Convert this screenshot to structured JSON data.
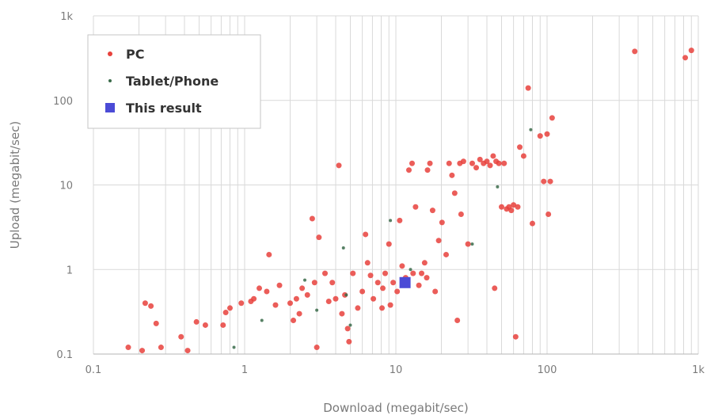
{
  "chart_data": {
    "type": "scatter",
    "scale": {
      "x": "log",
      "y": "log"
    },
    "grid": true,
    "legend_position": "top-left",
    "xlabel": "Download (megabit/sec)",
    "ylabel": "Upload (megabit/sec)",
    "xlim": [
      0.1,
      1000
    ],
    "ylim": [
      0.1,
      1000
    ],
    "x_ticks": [
      {
        "value": 0.1,
        "label": "0.1"
      },
      {
        "value": 1,
        "label": "1"
      },
      {
        "value": 10,
        "label": "10"
      },
      {
        "value": 100,
        "label": "100"
      },
      {
        "value": 1000,
        "label": "1k"
      }
    ],
    "y_ticks": [
      {
        "value": 0.1,
        "label": "0.1"
      },
      {
        "value": 1,
        "label": "1"
      },
      {
        "value": 10,
        "label": "10"
      },
      {
        "value": 100,
        "label": "100"
      },
      {
        "value": 1000,
        "label": "1k"
      }
    ],
    "series": [
      {
        "name": "PC",
        "color": "#e8413c",
        "marker": "circle",
        "points": [
          [
            0.17,
            0.12
          ],
          [
            0.21,
            0.11
          ],
          [
            0.22,
            0.4
          ],
          [
            0.24,
            0.37
          ],
          [
            0.26,
            0.23
          ],
          [
            0.28,
            0.12
          ],
          [
            0.38,
            0.16
          ],
          [
            0.42,
            0.11
          ],
          [
            0.48,
            0.24
          ],
          [
            0.55,
            0.22
          ],
          [
            0.72,
            0.22
          ],
          [
            0.75,
            0.31
          ],
          [
            0.8,
            0.35
          ],
          [
            0.95,
            0.4
          ],
          [
            1.1,
            0.42
          ],
          [
            1.25,
            0.6
          ],
          [
            1.4,
            0.55
          ],
          [
            1.45,
            1.5
          ],
          [
            1.6,
            0.38
          ],
          [
            1.7,
            0.65
          ],
          [
            2.0,
            0.4
          ],
          [
            2.1,
            0.25
          ],
          [
            2.2,
            0.45
          ],
          [
            2.3,
            0.3
          ],
          [
            2.4,
            0.6
          ],
          [
            2.8,
            4.0
          ],
          [
            2.9,
            0.7
          ],
          [
            3.0,
            0.12
          ],
          [
            3.1,
            2.4
          ],
          [
            3.4,
            0.9
          ],
          [
            3.6,
            0.42
          ],
          [
            3.8,
            0.7
          ],
          [
            4.0,
            0.45
          ],
          [
            4.2,
            17
          ],
          [
            4.4,
            0.3
          ],
          [
            4.6,
            0.5
          ],
          [
            4.8,
            0.2
          ],
          [
            4.9,
            0.14
          ],
          [
            5.2,
            0.9
          ],
          [
            5.6,
            0.35
          ],
          [
            6.0,
            0.55
          ],
          [
            6.3,
            2.6
          ],
          [
            6.8,
            0.85
          ],
          [
            7.1,
            0.45
          ],
          [
            7.6,
            0.7
          ],
          [
            8.1,
            0.35
          ],
          [
            8.5,
            0.9
          ],
          [
            9.0,
            2.0
          ],
          [
            9.2,
            0.38
          ],
          [
            9.6,
            0.7
          ],
          [
            10.2,
            0.55
          ],
          [
            10.6,
            3.8
          ],
          [
            11.0,
            1.1
          ],
          [
            11.6,
            0.8
          ],
          [
            12.2,
            15
          ],
          [
            12.8,
            18
          ],
          [
            13.5,
            5.5
          ],
          [
            14.2,
            0.65
          ],
          [
            14.8,
            0.9
          ],
          [
            15.5,
            1.2
          ],
          [
            16.2,
            15
          ],
          [
            16.8,
            18
          ],
          [
            17.5,
            5.0
          ],
          [
            18.2,
            0.55
          ],
          [
            19.2,
            2.2
          ],
          [
            20.2,
            3.6
          ],
          [
            21.5,
            1.5
          ],
          [
            22.5,
            18
          ],
          [
            23.5,
            13
          ],
          [
            24.5,
            8
          ],
          [
            25.5,
            0.25
          ],
          [
            26.5,
            18
          ],
          [
            28.0,
            19
          ],
          [
            30.0,
            2.0
          ],
          [
            32.0,
            18
          ],
          [
            34.0,
            16
          ],
          [
            36.0,
            20
          ],
          [
            38.0,
            18
          ],
          [
            40.0,
            19
          ],
          [
            42.0,
            17
          ],
          [
            44.0,
            22
          ],
          [
            46.0,
            19
          ],
          [
            48.0,
            18
          ],
          [
            50.0,
            5.5
          ],
          [
            52.0,
            18
          ],
          [
            54.0,
            5.2
          ],
          [
            56.0,
            5.5
          ],
          [
            58.0,
            5.0
          ],
          [
            60.0,
            5.8
          ],
          [
            62.0,
            0.16
          ],
          [
            64.0,
            5.5
          ],
          [
            66.0,
            28
          ],
          [
            70.0,
            22
          ],
          [
            75.0,
            140
          ],
          [
            80.0,
            3.5
          ],
          [
            90.0,
            38
          ],
          [
            95.0,
            11
          ],
          [
            100.0,
            40
          ],
          [
            102.0,
            4.5
          ],
          [
            105.0,
            11
          ],
          [
            108.0,
            62
          ],
          [
            380,
            380
          ],
          [
            820,
            320
          ],
          [
            900,
            390
          ],
          [
            1.15,
            0.45
          ],
          [
            2.6,
            0.5
          ],
          [
            6.5,
            1.2
          ],
          [
            8.2,
            0.6
          ],
          [
            13.0,
            0.9
          ],
          [
            16.0,
            0.8
          ],
          [
            27.0,
            4.5
          ],
          [
            45.0,
            0.6
          ]
        ]
      },
      {
        "name": "Tablet/Phone",
        "color": "#3a6b4a",
        "marker": "small-circle",
        "points": [
          [
            0.85,
            0.12
          ],
          [
            1.3,
            0.25
          ],
          [
            2.5,
            0.75
          ],
          [
            3.0,
            0.33
          ],
          [
            4.5,
            1.8
          ],
          [
            4.7,
            0.5
          ],
          [
            5.0,
            0.22
          ],
          [
            9.2,
            3.8
          ],
          [
            12.5,
            1.0
          ],
          [
            32.0,
            2.0
          ],
          [
            47.0,
            9.5
          ],
          [
            78.0,
            45
          ]
        ]
      },
      {
        "name": "This result",
        "color": "#4b4bd6",
        "marker": "square",
        "points": [
          [
            11.5,
            0.7
          ]
        ]
      }
    ]
  }
}
